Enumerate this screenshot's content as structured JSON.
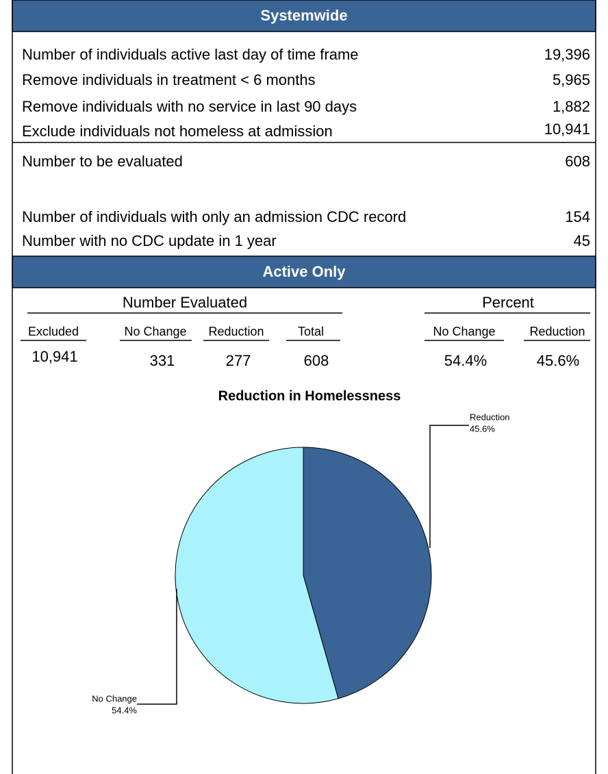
{
  "systemwide": {
    "title": "Systemwide",
    "rows": [
      [
        "Number of individuals active last day of time frame",
        "19,396"
      ],
      [
        "Remove individuals in treatment < 6 months",
        "5,965"
      ],
      [
        "Remove individuals with no service in last 90 days",
        "1,882"
      ],
      [
        "Exclude individuals not homeless at admission",
        "10,941"
      ]
    ],
    "evaluated": [
      "Number to be evaluated",
      "608"
    ],
    "notes": [
      [
        "Number of individuals with only an admission CDC record",
        "154"
      ],
      [
        "Number with no CDC update in 1 year",
        "45"
      ]
    ]
  },
  "active_only": {
    "title": "Active Only",
    "groups": [
      "Number Evaluated",
      "Percent"
    ],
    "columns": [
      "Excluded",
      "No Change",
      "Reduction",
      "Total",
      "No Change",
      "Reduction"
    ],
    "values": [
      "10,941",
      "331",
      "277",
      "608",
      "54.4%",
      "45.6%"
    ]
  },
  "chart_data": {
    "type": "pie",
    "title": "Reduction in Homelessness",
    "categories": [
      "Reduction",
      "No Change"
    ],
    "values": [
      45.6,
      54.4
    ],
    "value_labels": [
      "45.6%",
      "54.4%"
    ],
    "colors": [
      "#3a6496",
      "#abf3fc"
    ]
  }
}
